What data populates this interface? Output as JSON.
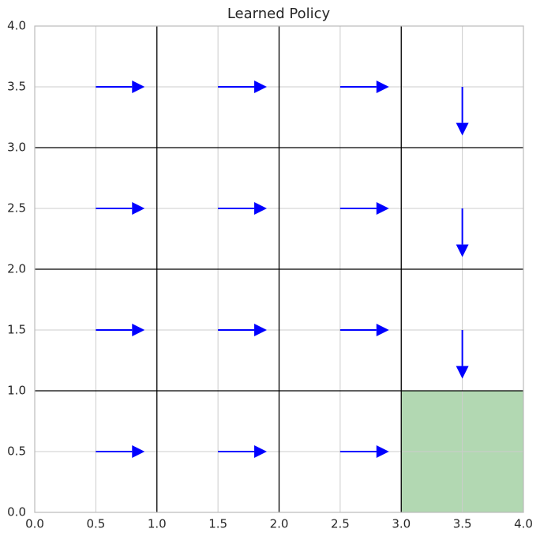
{
  "chart_data": {
    "type": "quiver",
    "title": "Learned Policy",
    "x": [
      0.5,
      1.5,
      2.5,
      3.5,
      0.5,
      1.5,
      2.5,
      3.5,
      0.5,
      1.5,
      2.5,
      3.5,
      0.5,
      1.5,
      2.5
    ],
    "y": [
      3.5,
      3.5,
      3.5,
      3.5,
      2.5,
      2.5,
      2.5,
      2.5,
      1.5,
      1.5,
      1.5,
      1.5,
      0.5,
      0.5,
      0.5
    ],
    "u": [
      0.4,
      0.4,
      0.4,
      0,
      0.4,
      0.4,
      0.4,
      0,
      0.4,
      0.4,
      0.4,
      0,
      0.4,
      0.4,
      0.4
    ],
    "v": [
      0,
      0,
      0,
      -0.4,
      0,
      0,
      0,
      -0.4,
      0,
      0,
      0,
      -0.4,
      0,
      0,
      0
    ],
    "color": "#0000ff",
    "goal_region": {
      "xlim": [
        3,
        4
      ],
      "ylim": [
        0,
        1
      ],
      "color": "#b2d8b2"
    },
    "cell_lines": [
      1,
      2,
      3
    ],
    "xlim": [
      0,
      4
    ],
    "ylim": [
      0,
      4
    ],
    "xticks": [
      {
        "value": 0,
        "label": "0.0"
      },
      0.5,
      {
        "value": 1,
        "label": "1.0"
      },
      1.5,
      {
        "value": 2,
        "label": "2.0"
      },
      2.5,
      {
        "value": 3,
        "label": "3.0"
      },
      3.5,
      {
        "value": 4,
        "label": "4.0"
      }
    ],
    "yticks": [
      {
        "value": 0,
        "label": "0.0"
      },
      0.5,
      {
        "value": 1,
        "label": "1.0"
      },
      1.5,
      {
        "value": 2,
        "label": "2.0"
      },
      2.5,
      {
        "value": 3,
        "label": "3.0"
      },
      3.5,
      {
        "value": 4,
        "label": "4.0"
      }
    ],
    "grid": true
  }
}
